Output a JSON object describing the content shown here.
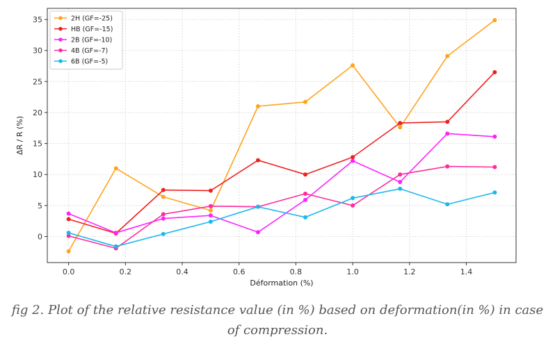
{
  "chart_data": {
    "type": "line",
    "title": "",
    "xlabel": "Déformation (%)",
    "ylabel": "ΔR / R (%)",
    "xlim": [
      -0.075,
      1.575
    ],
    "ylim": [
      -4.2,
      36.8
    ],
    "xticks": [
      0.0,
      0.2,
      0.4,
      0.6,
      0.8,
      1.0,
      1.2,
      1.4
    ],
    "xtick_labels": [
      "0.0",
      "0.2",
      "0.4",
      "0.6",
      "0.8",
      "1.0",
      "1.2",
      "1.4"
    ],
    "yticks": [
      0,
      5,
      10,
      15,
      20,
      25,
      30,
      35
    ],
    "ytick_labels": [
      "0",
      "5",
      "10",
      "15",
      "20",
      "25",
      "30",
      "35"
    ],
    "grid": true,
    "legend_position": "top-left",
    "x": [
      0.0,
      0.1667,
      0.3333,
      0.5,
      0.6667,
      0.8333,
      1.0,
      1.1667,
      1.3333,
      1.5
    ],
    "series": [
      {
        "name": "2H (GF=-25)",
        "color": "#ffa31a",
        "values": [
          -2.4,
          11.0,
          6.4,
          4.2,
          21.0,
          21.7,
          27.6,
          17.6,
          29.1,
          34.9
        ]
      },
      {
        "name": "HB (GF=-15)",
        "color": "#ef2020",
        "values": [
          2.8,
          0.5,
          7.5,
          7.4,
          12.3,
          10.0,
          12.8,
          18.3,
          18.5,
          26.5
        ]
      },
      {
        "name": "2B (GF=-10)",
        "color": "#ff1fff",
        "values": [
          3.7,
          0.6,
          2.9,
          3.4,
          0.7,
          5.9,
          12.2,
          8.8,
          16.6,
          16.1
        ]
      },
      {
        "name": "4B (GF=-7)",
        "color": "#ff2a9c",
        "values": [
          0.1,
          -1.9,
          3.6,
          4.9,
          4.8,
          6.9,
          5.0,
          10.0,
          11.3,
          11.2
        ]
      },
      {
        "name": "6B (GF=-5)",
        "color": "#1ab8ee",
        "values": [
          0.6,
          -1.6,
          0.4,
          2.4,
          4.8,
          3.1,
          6.2,
          7.7,
          5.2,
          7.1
        ]
      }
    ]
  },
  "caption": {
    "line1": "fig 2. Plot of the relative resistance value (in %) based  on deformation(in %) in case",
    "line2": "of  compression."
  }
}
